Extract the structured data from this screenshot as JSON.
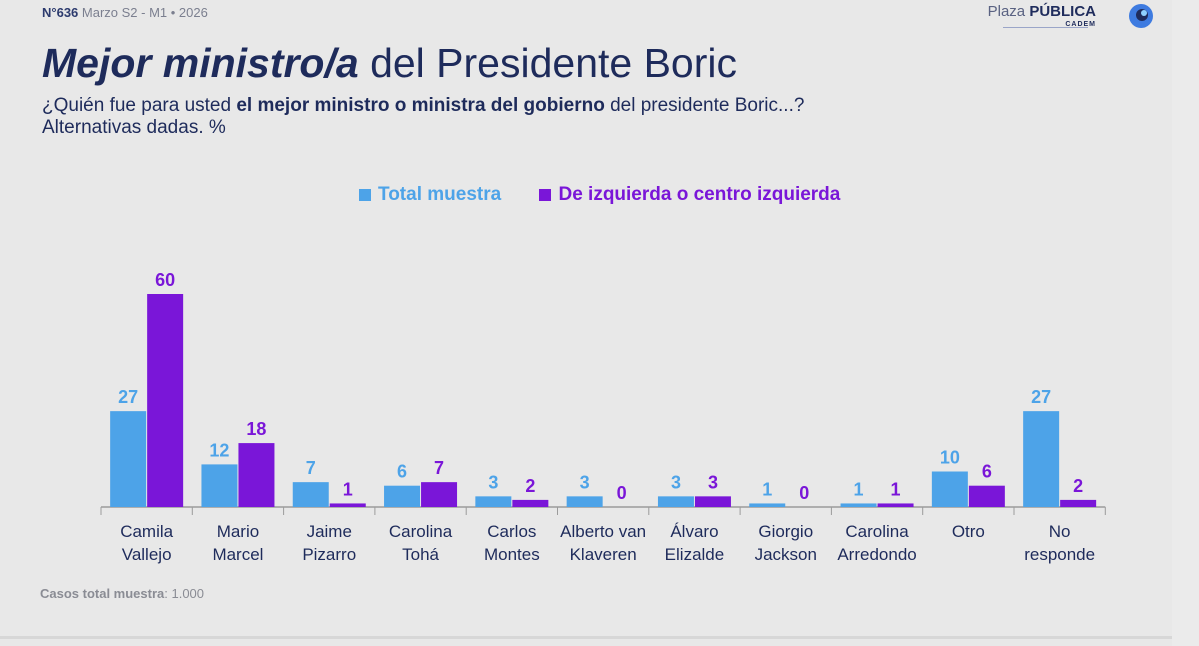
{
  "header": {
    "issue": "N°636",
    "period": "Marzo S2 - M1 • 2026",
    "brand_light": "Plaza",
    "brand_bold": "PÚBLICA",
    "brand_sub": "CADEM"
  },
  "title": {
    "emphasis": "Mejor ministro/a",
    "rest": "del Presidente Boric"
  },
  "subtitle": {
    "part1": "¿Quién fue para usted ",
    "bold": "el mejor ministro o ministra del gobierno",
    "part2": " del presidente Boric...?",
    "line2": "Alternativas dadas. %"
  },
  "footer": {
    "label": "Casos total muestra",
    "value": ": 1.000"
  },
  "colors": {
    "total": "#4da3e8",
    "izquierda": "#7a16d8",
    "axis": "#9b9b9b",
    "text": "#1e2b5b"
  },
  "chart_data": {
    "type": "bar",
    "legend_placement": "top",
    "grid": false,
    "categories": [
      [
        "Camila",
        "Vallejo"
      ],
      [
        "Mario",
        "Marcel"
      ],
      [
        "Jaime",
        "Pizarro"
      ],
      [
        "Carolina",
        "Tohá"
      ],
      [
        "Carlos",
        "Montes"
      ],
      [
        "Alberto van",
        "Klaveren"
      ],
      [
        "Álvaro",
        "Elizalde"
      ],
      [
        "Giorgio",
        "Jackson"
      ],
      [
        "Carolina",
        "Arredondo"
      ],
      [
        "Otro"
      ],
      [
        "No",
        "responde"
      ]
    ],
    "series": [
      {
        "name": "Total muestra",
        "values": [
          27,
          12,
          7,
          6,
          3,
          3,
          3,
          1,
          1,
          10,
          27
        ]
      },
      {
        "name": "De izquierda o centro izquierda",
        "values": [
          60,
          18,
          1,
          7,
          2,
          0,
          3,
          0,
          1,
          6,
          2
        ]
      }
    ],
    "ylim": [
      0,
      60
    ]
  }
}
